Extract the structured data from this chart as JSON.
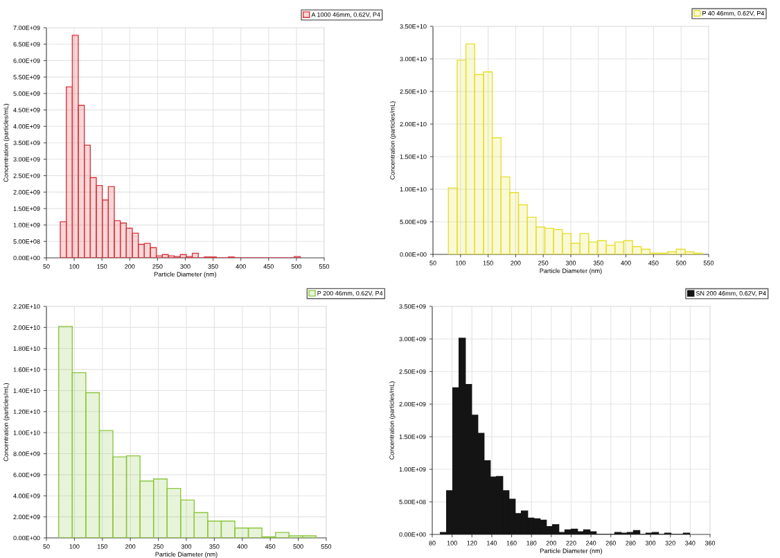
{
  "chart_data": [
    {
      "type": "histogram",
      "xlabel": "Particle Diameter (nm)",
      "ylabel": "Concentration (particles/mL)",
      "bins": [
        75,
        85.8,
        96.6,
        107.4,
        118.2,
        129,
        139.8,
        150.6,
        161.4,
        172.2,
        183,
        193.8,
        204.6,
        215.4,
        226.2,
        237,
        247.8,
        258.6,
        269.4,
        280.2,
        291,
        301.8,
        312.6,
        323.4,
        334.2,
        345,
        355.8,
        366.6,
        377.4,
        388.2,
        399,
        409.8,
        420.6,
        431.4,
        442.2,
        453,
        463.8,
        474.6,
        485.4,
        496.2,
        507
      ],
      "series": [
        {
          "name": "A 1000 46mm, 0.62V, P4",
          "color": "#d9363e",
          "values": [
            1100000000.0,
            5200000000.0,
            6770000000.0,
            4640000000.0,
            3430000000.0,
            2440000000.0,
            2200000000.0,
            1760000000.0,
            2170000000.0,
            1130000000.0,
            1060000000.0,
            900000000.0,
            750000000.0,
            410000000.0,
            440000000.0,
            310000000.0,
            60000000.0,
            100000000.0,
            60000000.0,
            40000000.0,
            100000000.0,
            40000000.0,
            140000000.0,
            0,
            30000000.0,
            30000000.0,
            0,
            0,
            30000000.0,
            0,
            0,
            0,
            0,
            0,
            0,
            0,
            0,
            0,
            0,
            40000000.0
          ]
        }
      ],
      "xlim": [
        50,
        550
      ],
      "xticks": [
        50,
        100,
        150,
        200,
        250,
        300,
        350,
        400,
        450,
        500,
        550
      ],
      "ylim": [
        0,
        7000000000.0
      ],
      "yticks": [
        {
          "value": 0,
          "label": "0.00E+00"
        },
        {
          "value": 500000000.0,
          "label": "5.00E+08"
        },
        {
          "value": 1000000000.0,
          "label": "1.00E+09"
        },
        {
          "value": 1500000000.0,
          "label": "1.50E+09"
        },
        {
          "value": 2000000000.0,
          "label": "2.00E+09"
        },
        {
          "value": 2500000000.0,
          "label": "2.50E+09"
        },
        {
          "value": 3000000000.0,
          "label": "3.00E+09"
        },
        {
          "value": 3500000000.0,
          "label": "3.50E+09"
        },
        {
          "value": 4000000000.0,
          "label": "4.00E+09"
        },
        {
          "value": 4500000000.0,
          "label": "4.50E+09"
        },
        {
          "value": 5000000000.0,
          "label": "5.00E+09"
        },
        {
          "value": 5500000000.0,
          "label": "5.50E+09"
        },
        {
          "value": 6000000000.0,
          "label": "6.00E+09"
        },
        {
          "value": 6500000000.0,
          "label": "6.50E+09"
        },
        {
          "value": 7000000000.0,
          "label": "7.00E+09"
        }
      ],
      "grid": true,
      "legend": "top right"
    },
    {
      "type": "histogram",
      "xlabel": "Particle Diameter (nm)",
      "ylabel": "Concentration (particles/mL)",
      "bins": [
        78,
        93.9,
        109.8,
        125.7,
        141.6,
        157.5,
        173.4,
        189.3,
        205.2,
        221.1,
        237,
        252.9,
        268.8,
        284.7,
        300.6,
        316.5,
        332.4,
        348.3,
        364.2,
        380.1,
        396,
        411.9,
        427.8,
        443.7,
        459.6,
        475.5,
        491.4,
        507.3,
        523.2,
        539.1
      ],
      "series": [
        {
          "name": "P 40 46mm, 0.62V, P4",
          "color": "#e6df2e",
          "values": [
            10200000000.0,
            29800000000.0,
            32300000000.0,
            27600000000.0,
            28000000000.0,
            17900000000.0,
            11900000000.0,
            9500000000.0,
            7600000000.0,
            5700000000.0,
            4200000000.0,
            4000000000.0,
            3800000000.0,
            3200000000.0,
            1700000000.0,
            3200000000.0,
            1900000000.0,
            2100000000.0,
            1400000000.0,
            1900000000.0,
            2100000000.0,
            1200000000.0,
            800000000.0,
            200000000.0,
            200000000.0,
            400000000.0,
            800000000.0,
            400000000.0,
            200000000.0
          ]
        }
      ],
      "xlim": [
        50,
        550
      ],
      "xticks": [
        50,
        100,
        150,
        200,
        250,
        300,
        350,
        400,
        450,
        500,
        550
      ],
      "ylim": [
        0,
        35000000000.0
      ],
      "yticks": [
        {
          "value": 0,
          "label": "0.00E+00"
        },
        {
          "value": 5000000000.0,
          "label": "5.00E+09"
        },
        {
          "value": 10000000000.0,
          "label": "1.00E+10"
        },
        {
          "value": 15000000000.0,
          "label": "1.50E+10"
        },
        {
          "value": 20000000000.0,
          "label": "2.00E+10"
        },
        {
          "value": 25000000000.0,
          "label": "2.50E+10"
        },
        {
          "value": 30000000000.0,
          "label": "3.00E+10"
        },
        {
          "value": 35000000000.0,
          "label": "3.50E+10"
        }
      ],
      "grid": true,
      "legend": "top right"
    },
    {
      "type": "histogram",
      "xlabel": "Particle Diameter (nm)",
      "ylabel": "Concentration (particles/mL)",
      "bins": [
        72,
        96.2,
        120.4,
        144.6,
        168.8,
        193,
        217.2,
        241.4,
        265.6,
        289.8,
        314,
        338.2,
        362.4,
        386.6,
        410.8,
        435,
        459.2,
        483.4,
        507.6,
        531.8
      ],
      "series": [
        {
          "name": "P 200 46mm, 0.62V, P4",
          "color": "#8cc63f",
          "values": [
            20100000000.0,
            15700000000.0,
            13800000000.0,
            10200000000.0,
            7700000000.0,
            7800000000.0,
            5400000000.0,
            5600000000.0,
            4700000000.0,
            3600000000.0,
            2400000000.0,
            1600000000.0,
            1600000000.0,
            940000000.0,
            940000000.0,
            100000000.0,
            520000000.0,
            200000000.0,
            200000000.0
          ]
        }
      ],
      "xlim": [
        50,
        550
      ],
      "xticks": [
        50,
        100,
        150,
        200,
        250,
        300,
        350,
        400,
        450,
        500,
        550
      ],
      "ylim": [
        0,
        22000000000.0
      ],
      "yticks": [
        {
          "value": 0,
          "label": "0.00E+00"
        },
        {
          "value": 2000000000.0,
          "label": "2.00E+09"
        },
        {
          "value": 4000000000.0,
          "label": "4.00E+09"
        },
        {
          "value": 6000000000.0,
          "label": "6.00E+09"
        },
        {
          "value": 8000000000.0,
          "label": "8.00E+09"
        },
        {
          "value": 10000000000.0,
          "label": "1.00E+10"
        },
        {
          "value": 12000000000.0,
          "label": "1.20E+10"
        },
        {
          "value": 14000000000.0,
          "label": "1.40E+10"
        },
        {
          "value": 16000000000.0,
          "label": "1.60E+10"
        },
        {
          "value": 18000000000.0,
          "label": "1.80E+10"
        },
        {
          "value": 20000000000.0,
          "label": "2.00E+10"
        },
        {
          "value": 22000000000.0,
          "label": "2.20E+10"
        }
      ],
      "grid": true,
      "legend": "top right"
    },
    {
      "type": "histogram",
      "xlabel": "Particle Diameter (nm)",
      "ylabel": "Concentration (particles/mL)",
      "bins": [
        88.2,
        94.48,
        100.76,
        107.04,
        113.32,
        119.6,
        125.88,
        132.16,
        138.44,
        144.72,
        151,
        157.28,
        163.56,
        169.84,
        176.12,
        182.4,
        188.68,
        194.96,
        201.24,
        207.52,
        213.8,
        220.08,
        226.36,
        232.64,
        238.92,
        245.2,
        251.48,
        257.76,
        264.04,
        270.32,
        276.6,
        282.88,
        289.16,
        295.44,
        301.72,
        308,
        314.28,
        320.56,
        326.84,
        333.12,
        339.4
      ],
      "series": [
        {
          "name": "SN 200 46mm, 0.62V, P4",
          "color": "#141414",
          "values": [
            30000000.0,
            670000000.0,
            2250000000.0,
            3010000000.0,
            2300000000.0,
            1830000000.0,
            1550000000.0,
            1130000000.0,
            880000000.0,
            890000000.0,
            670000000.0,
            540000000.0,
            320000000.0,
            360000000.0,
            250000000.0,
            240000000.0,
            220000000.0,
            120000000.0,
            150000000.0,
            30000000.0,
            70000000.0,
            80000000.0,
            40000000.0,
            70000000.0,
            40000000.0,
            0,
            0,
            0,
            30000000.0,
            20000000.0,
            30000000.0,
            60000000.0,
            0,
            20000000.0,
            30000000.0,
            0,
            20000000.0,
            0,
            0,
            20000000.0
          ]
        }
      ],
      "xlim": [
        80,
        360
      ],
      "xticks": [
        80,
        100,
        120,
        140,
        160,
        180,
        200,
        220,
        240,
        260,
        280,
        300,
        320,
        340,
        360
      ],
      "ylim": [
        0,
        3500000000.0
      ],
      "yticks": [
        {
          "value": 0,
          "label": "0.00E+00"
        },
        {
          "value": 500000000.0,
          "label": "5.00E+08"
        },
        {
          "value": 1000000000.0,
          "label": "1.00E+09"
        },
        {
          "value": 1500000000.0,
          "label": "1.50E+09"
        },
        {
          "value": 2000000000.0,
          "label": "2.00E+09"
        },
        {
          "value": 2500000000.0,
          "label": "2.50E+09"
        },
        {
          "value": 3000000000.0,
          "label": "3.00E+09"
        },
        {
          "value": 3500000000.0,
          "label": "3.50E+09"
        }
      ],
      "grid": true,
      "legend": "top right"
    }
  ]
}
